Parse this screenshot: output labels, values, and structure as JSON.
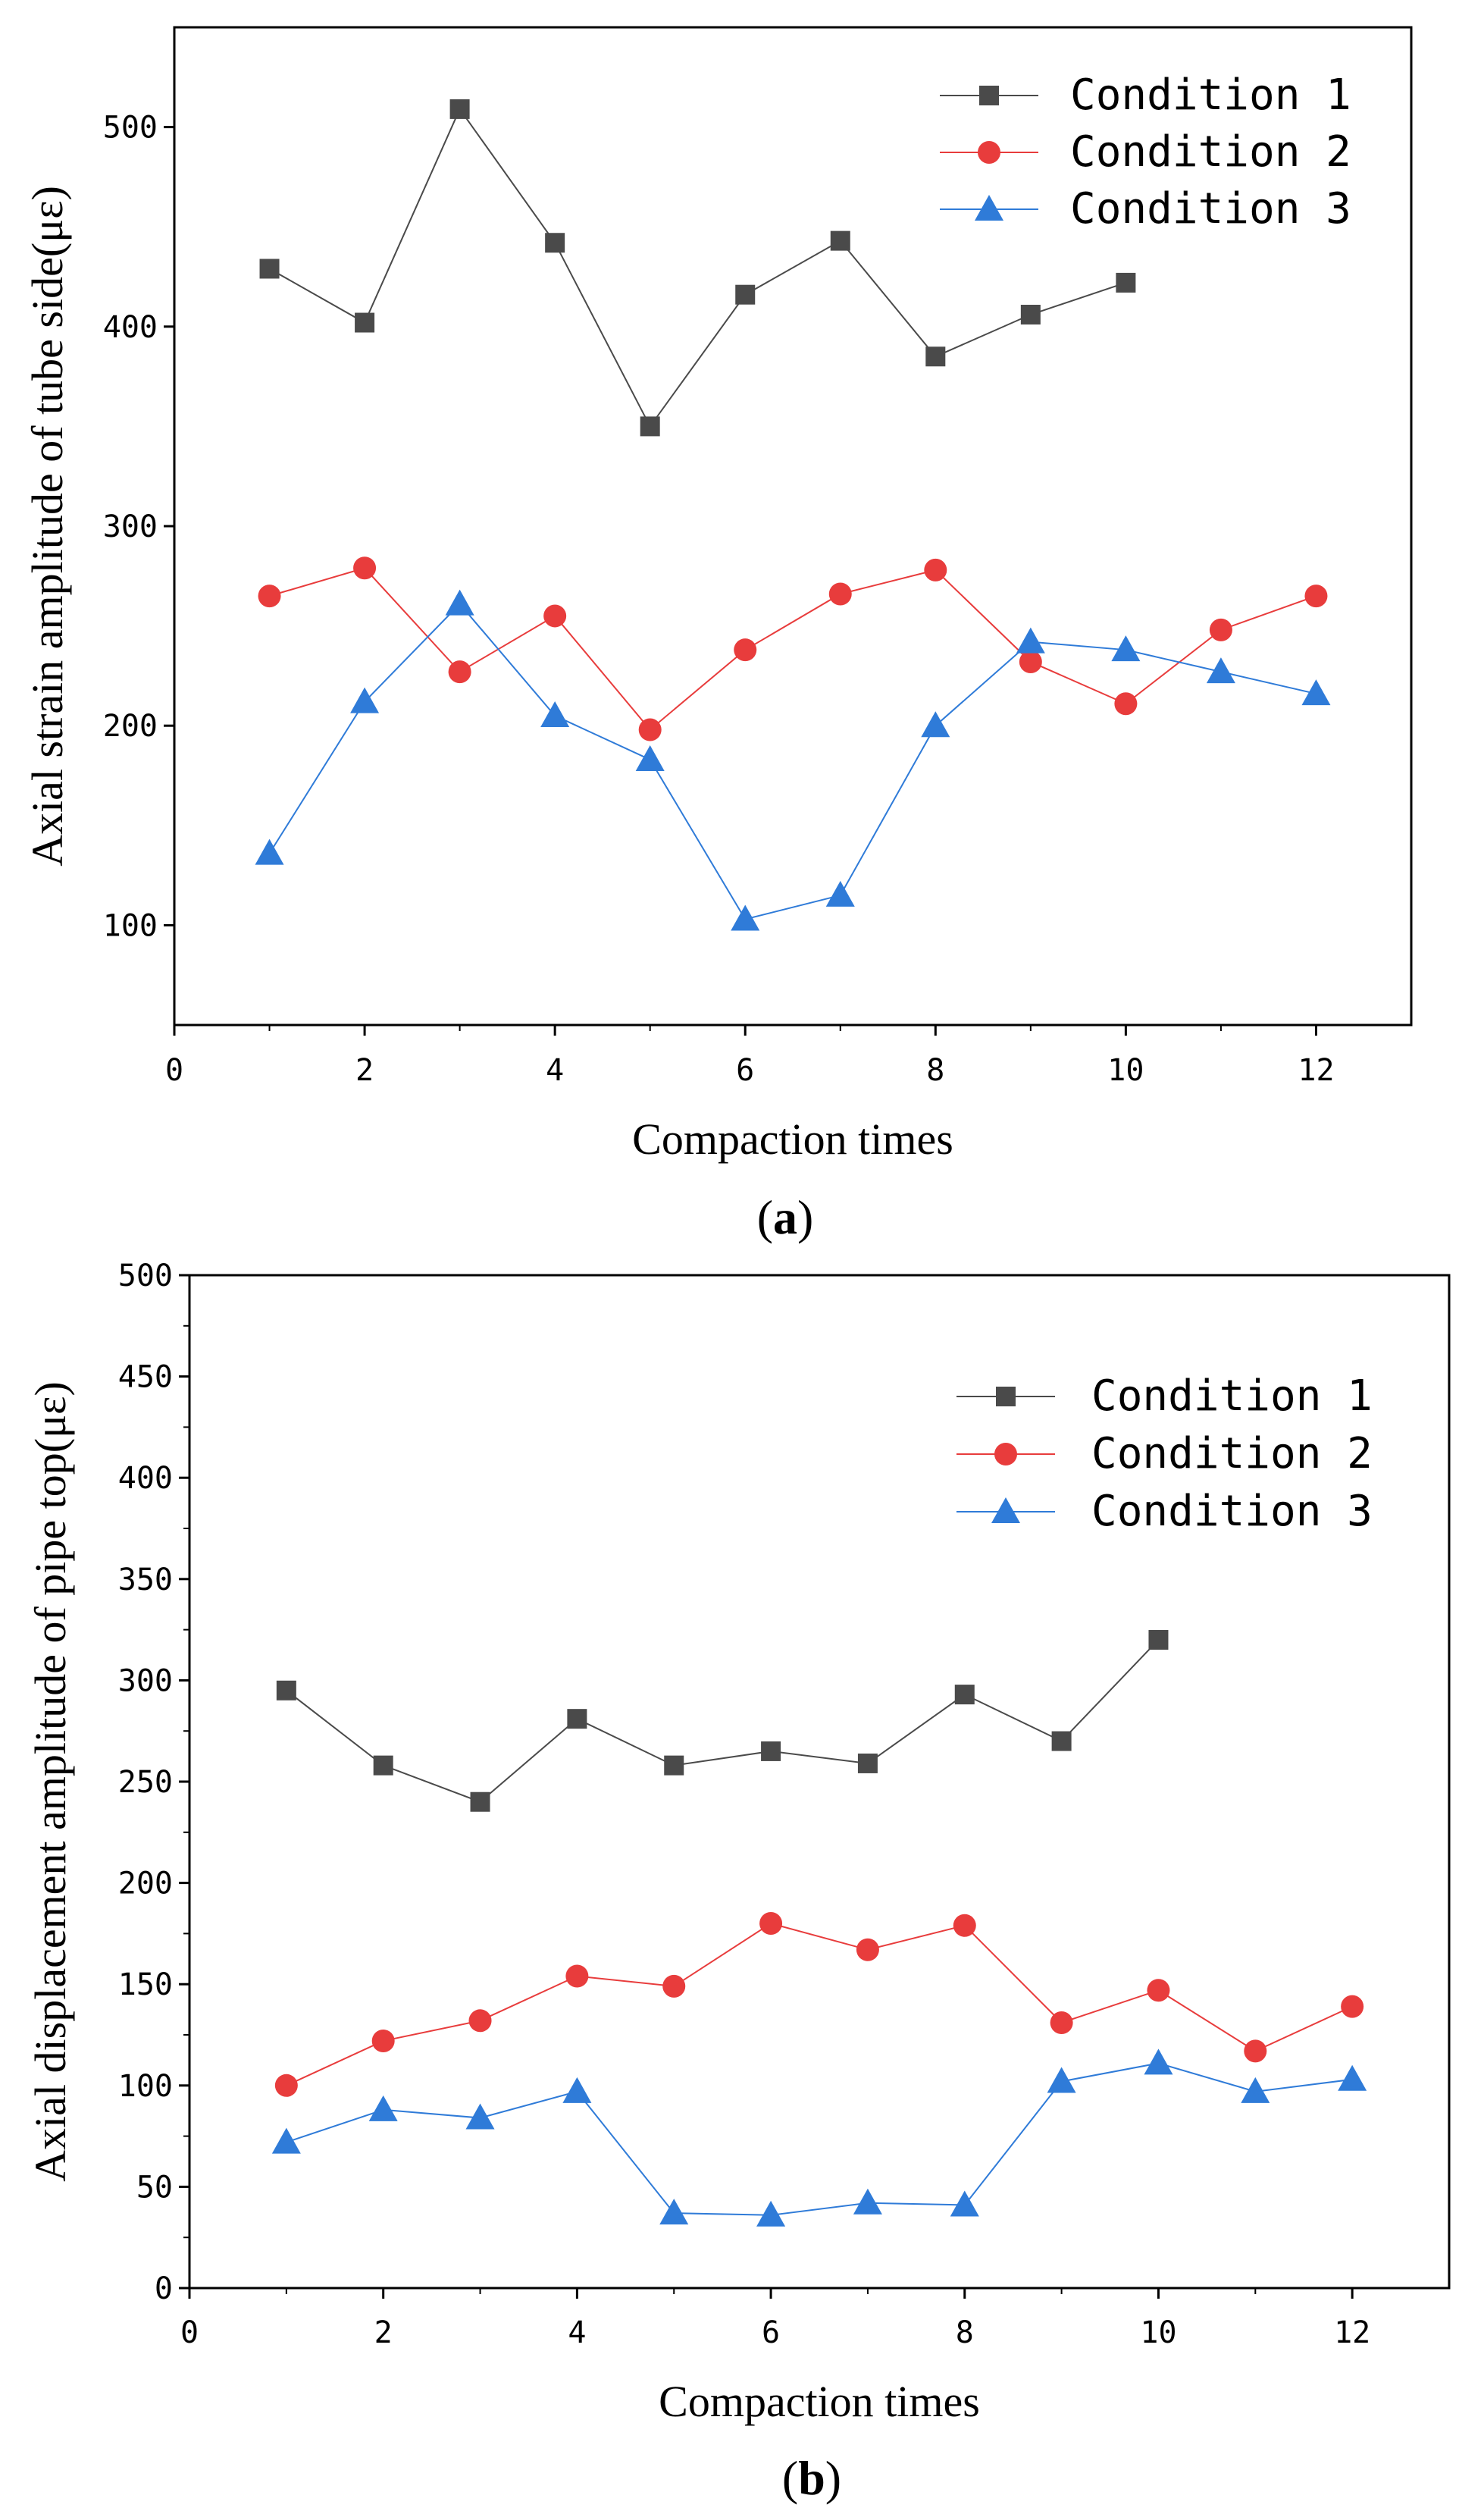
{
  "chart_data": [
    {
      "type": "line",
      "panel_label": "a",
      "xlabel": "Compaction times",
      "ylabel": "Axial strain amplitude of tube side(με)",
      "xlim": [
        0,
        13
      ],
      "ylim": [
        50,
        550
      ],
      "xticks": [
        0,
        2,
        4,
        6,
        8,
        10,
        12
      ],
      "yticks": [
        100,
        200,
        300,
        400,
        500
      ],
      "legend_position": "top-right",
      "series": [
        {
          "name": "Condition 1",
          "color": "#4a4a4a",
          "marker": "square",
          "x": [
            1,
            2,
            3,
            4,
            5,
            6,
            7,
            8,
            9,
            10
          ],
          "y": [
            429,
            402,
            509,
            442,
            350,
            416,
            443,
            385,
            406,
            422
          ]
        },
        {
          "name": "Condition 2",
          "color": "#e83c3c",
          "marker": "circle",
          "x": [
            1,
            2,
            3,
            4,
            5,
            6,
            7,
            8,
            9,
            10,
            11,
            12
          ],
          "y": [
            265,
            279,
            227,
            255,
            198,
            238,
            266,
            278,
            232,
            211,
            248,
            265
          ]
        },
        {
          "name": "Condition 3",
          "color": "#2f7bd8",
          "marker": "triangle",
          "x": [
            1,
            2,
            3,
            4,
            5,
            6,
            7,
            8,
            9,
            10,
            11,
            12
          ],
          "y": [
            136,
            212,
            261,
            205,
            183,
            103,
            115,
            200,
            242,
            238,
            227,
            216
          ]
        }
      ]
    },
    {
      "type": "line",
      "panel_label": "b",
      "xlabel": "Compaction times",
      "ylabel": "Axial displacement amplitude of pipe top(με)",
      "xlim": [
        0,
        13
      ],
      "ylim": [
        0,
        500
      ],
      "xticks": [
        0,
        2,
        4,
        6,
        8,
        10,
        12
      ],
      "yticks": [
        0,
        50,
        100,
        150,
        200,
        250,
        300,
        350,
        400,
        450,
        500
      ],
      "legend_position": "top-right",
      "series": [
        {
          "name": "Condition 1",
          "color": "#4a4a4a",
          "marker": "square",
          "x": [
            1,
            2,
            3,
            4,
            5,
            6,
            7,
            8,
            9,
            10
          ],
          "y": [
            295,
            258,
            240,
            281,
            258,
            265,
            259,
            293,
            270,
            320
          ]
        },
        {
          "name": "Condition 2",
          "color": "#e83c3c",
          "marker": "circle",
          "x": [
            1,
            2,
            3,
            4,
            5,
            6,
            7,
            8,
            9,
            10,
            11,
            12
          ],
          "y": [
            100,
            122,
            132,
            154,
            149,
            180,
            167,
            179,
            131,
            147,
            117,
            139
          ]
        },
        {
          "name": "Condition 3",
          "color": "#2f7bd8",
          "marker": "triangle",
          "x": [
            1,
            2,
            3,
            4,
            5,
            6,
            7,
            8,
            9,
            10,
            11,
            12
          ],
          "y": [
            72,
            88,
            84,
            97,
            37,
            36,
            42,
            41,
            102,
            111,
            97,
            103
          ]
        }
      ]
    }
  ]
}
